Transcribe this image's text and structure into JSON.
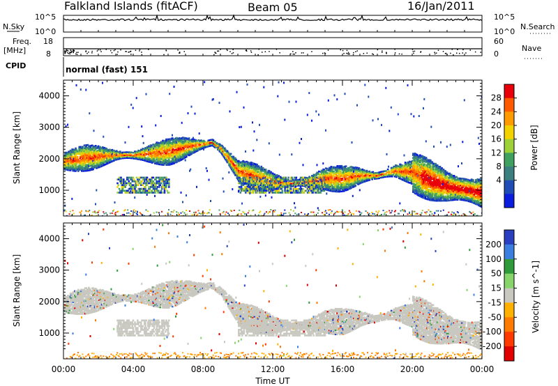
{
  "header": {
    "station": "Falkland Islands (fitACF)",
    "beam": "Beam 05",
    "date": "16/Jan/2011"
  },
  "strips": {
    "nsky_label": "N.Sky",
    "nsky_ticks": [
      "10^5",
      "10^0"
    ],
    "nsearch_label": "N.Search",
    "nsearch_ticks": [
      "10^5",
      "10^0"
    ],
    "freq_label_1": "Freq.",
    "freq_label_2": "[MHz]",
    "freq_ticks": [
      "18",
      "8"
    ],
    "nave_label": "Nave",
    "nave_ticks": [
      "60",
      "0"
    ],
    "cpid_label": "CPID",
    "cpid_value": "normal (fast) 151"
  },
  "chart_data": [
    {
      "type": "heatmap",
      "panel": "power",
      "xlabel": "",
      "ylabel": "Slant Range [km]",
      "xlim": [
        0,
        24
      ],
      "ylim": [
        180,
        4500
      ],
      "x_ticks": [
        "00:00",
        "04:00",
        "08:00",
        "12:00",
        "16:00",
        "20:00",
        "00:00"
      ],
      "y_ticks": [
        "4000",
        "3000",
        "2000",
        "1000"
      ],
      "colorbar": {
        "label": "Power [dB]",
        "ticks": [
          "28",
          "24",
          "20",
          "16",
          "12",
          "8",
          "4"
        ],
        "colors": [
          "#e8000b",
          "#ff5a00",
          "#ff9a00",
          "#f2d200",
          "#9ed03a",
          "#3fa060",
          "#3c7f7f",
          "#1f4cb5",
          "#0a1cdc"
        ]
      },
      "series": [
        {
          "x": [
            0,
            1,
            2,
            3,
            4,
            5,
            6,
            7,
            8,
            8.5,
            9,
            10,
            11,
            12,
            13,
            14,
            15,
            16,
            17,
            18,
            19,
            20,
            21,
            22,
            23,
            24
          ],
          "y": [
            1900,
            2000,
            2050,
            2100,
            2100,
            2150,
            2200,
            2350,
            2450,
            2500,
            2300,
            1600,
            1400,
            1250,
            1200,
            1250,
            1350,
            1350,
            1450,
            1450,
            1600,
            1550,
            1300,
            1100,
            1000,
            900
          ]
        }
      ]
    },
    {
      "type": "heatmap",
      "panel": "velocity",
      "xlabel": "Time UT",
      "ylabel": "Slant Range [km]",
      "xlim": [
        0,
        24
      ],
      "ylim": [
        180,
        4500
      ],
      "x_ticks": [
        "00:00",
        "04:00",
        "08:00",
        "12:00",
        "16:00",
        "20:00",
        "00:00"
      ],
      "y_ticks": [
        "4000",
        "3000",
        "2000",
        "1000"
      ],
      "colorbar": {
        "label": "Velocity [m s^-1]",
        "ticks": [
          "200",
          "100",
          "50",
          "15",
          "-15",
          "-50",
          "-100",
          "-200"
        ],
        "colors": [
          "#2a3fc0",
          "#3a7fe0",
          "#2f9a3a",
          "#86d46a",
          "#c8c8c0",
          "#ffb000",
          "#ff7a00",
          "#ff3a00",
          "#e00000"
        ]
      }
    }
  ]
}
